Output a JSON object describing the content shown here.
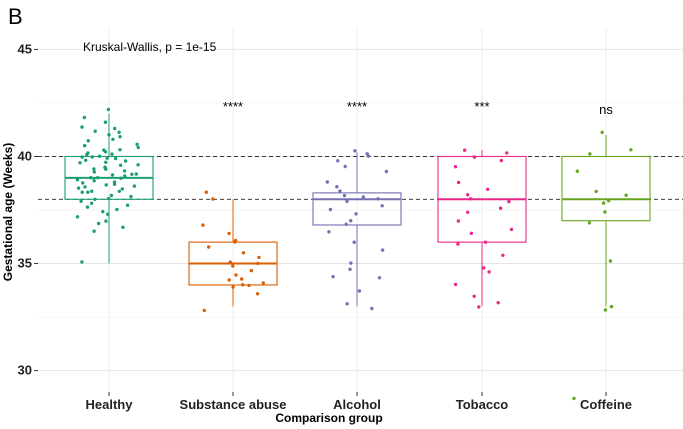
{
  "chart_data": {
    "type": "box",
    "panel_label": "B",
    "title": "",
    "xlabel": "Comparison group",
    "ylabel": "Gestational age (Weeks)",
    "ylim": [
      29,
      46
    ],
    "yticks": [
      30,
      35,
      40,
      45
    ],
    "grid": true,
    "annotation": "Kruskal-Wallis, p = 1e-15",
    "reference_lines": [
      38,
      40
    ],
    "categories": [
      "Healthy",
      "Substance abuse",
      "Alcohol",
      "Tobacco",
      "Coffeine"
    ],
    "groups": [
      {
        "name": "Healthy",
        "color": "#1b9e77",
        "q1": 38,
        "median": 39,
        "q3": 40,
        "whisker_low": 35,
        "whisker_high": 42,
        "significance": "",
        "points": [
          42.2,
          41.8,
          41.6,
          41.4,
          41.3,
          41.2,
          41.1,
          41.0,
          40.9,
          40.8,
          40.7,
          40.6,
          40.5,
          40.4,
          40.3,
          40.3,
          40.2,
          40.2,
          40.1,
          40.1,
          40.0,
          40.0,
          40.0,
          39.9,
          39.9,
          39.8,
          39.8,
          39.7,
          39.7,
          39.6,
          39.6,
          39.5,
          39.5,
          39.4,
          39.4,
          39.3,
          39.3,
          39.2,
          39.2,
          39.1,
          39.1,
          39.0,
          39.0,
          39.0,
          38.9,
          38.9,
          38.8,
          38.8,
          38.7,
          38.7,
          38.6,
          38.6,
          38.5,
          38.5,
          38.4,
          38.4,
          38.3,
          38.3,
          38.2,
          38.1,
          38.0,
          38.0,
          37.9,
          37.8,
          37.7,
          37.6,
          37.5,
          37.4,
          37.3,
          37.2,
          37.0,
          36.9,
          36.7,
          36.5,
          35.1
        ]
      },
      {
        "name": "Substance abuse",
        "color": "#d95f02",
        "q1": 34,
        "median": 35,
        "q3": 36,
        "whisker_low": 33,
        "whisker_high": 38,
        "significance": "****",
        "points": [
          38.3,
          38.0,
          36.8,
          36.4,
          36.1,
          36.0,
          35.8,
          35.5,
          35.3,
          35.1,
          35.0,
          34.9,
          34.7,
          34.5,
          34.3,
          34.2,
          34.1,
          34.0,
          34.0,
          33.9,
          33.6,
          32.8
        ]
      },
      {
        "name": "Alcohol",
        "color": "#7570b3",
        "q1": 36.8,
        "median": 38,
        "q3": 38.3,
        "whisker_low": 33,
        "whisker_high": 40.2,
        "significance": "****",
        "points": [
          40.3,
          40.1,
          40.0,
          39.8,
          39.5,
          39.3,
          38.8,
          38.6,
          38.4,
          38.2,
          38.1,
          38.0,
          37.9,
          37.7,
          37.5,
          37.3,
          37.0,
          36.8,
          36.5,
          36.0,
          35.6,
          35.0,
          34.7,
          34.4,
          34.3,
          33.7,
          33.1,
          32.9
        ]
      },
      {
        "name": "Tobacco",
        "color": "#e7298a",
        "q1": 36,
        "median": 38,
        "q3": 40,
        "whisker_low": 33,
        "whisker_high": 40.3,
        "significance": "***",
        "points": [
          40.3,
          40.2,
          40.0,
          39.8,
          39.5,
          38.8,
          38.5,
          38.2,
          38.0,
          37.9,
          37.6,
          37.4,
          37.0,
          36.6,
          36.4,
          36.0,
          35.9,
          35.4,
          34.8,
          34.6,
          34.0,
          33.5,
          33.2,
          33.0
        ]
      },
      {
        "name": "Coffeine",
        "color": "#66a61e",
        "q1": 37,
        "median": 38,
        "q3": 40,
        "whisker_low": 33,
        "whisker_high": 41,
        "significance": "ns",
        "points": [
          41.1,
          40.3,
          40.1,
          39.3,
          38.4,
          38.2,
          37.9,
          37.8,
          37.4,
          36.9,
          35.1,
          33.0,
          32.8,
          28.7
        ]
      }
    ]
  }
}
